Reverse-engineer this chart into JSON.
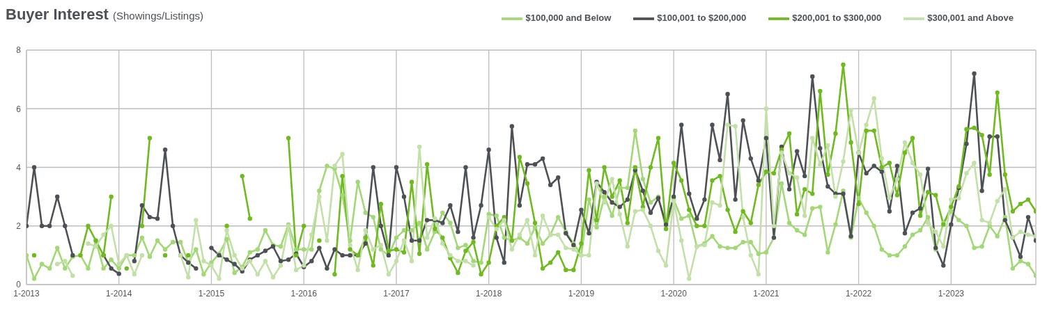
{
  "chart_data": {
    "type": "line",
    "title": "Buyer Interest",
    "subtitle": "(Showings/Listings)",
    "x": [
      "2013-01",
      "2013-02",
      "2013-03",
      "2013-04",
      "2013-05",
      "2013-06",
      "2013-07",
      "2013-08",
      "2013-09",
      "2013-10",
      "2013-11",
      "2013-12",
      "2014-01",
      "2014-02",
      "2014-03",
      "2014-04",
      "2014-05",
      "2014-06",
      "2014-07",
      "2014-08",
      "2014-09",
      "2014-10",
      "2014-11",
      "2014-12",
      "2015-01",
      "2015-02",
      "2015-03",
      "2015-04",
      "2015-05",
      "2015-06",
      "2015-07",
      "2015-08",
      "2015-09",
      "2015-10",
      "2015-11",
      "2015-12",
      "2016-01",
      "2016-02",
      "2016-03",
      "2016-04",
      "2016-05",
      "2016-06",
      "2016-07",
      "2016-08",
      "2016-09",
      "2016-10",
      "2016-11",
      "2016-12",
      "2017-01",
      "2017-02",
      "2017-03",
      "2017-04",
      "2017-05",
      "2017-06",
      "2017-07",
      "2017-08",
      "2017-09",
      "2017-10",
      "2017-11",
      "2017-12",
      "2018-01",
      "2018-02",
      "2018-03",
      "2018-04",
      "2018-05",
      "2018-06",
      "2018-07",
      "2018-08",
      "2018-09",
      "2018-10",
      "2018-11",
      "2018-12",
      "2019-01",
      "2019-02",
      "2019-03",
      "2019-04",
      "2019-05",
      "2019-06",
      "2019-07",
      "2019-08",
      "2019-09",
      "2019-10",
      "2019-11",
      "2019-12",
      "2020-01",
      "2020-02",
      "2020-03",
      "2020-04",
      "2020-05",
      "2020-06",
      "2020-07",
      "2020-08",
      "2020-09",
      "2020-10",
      "2020-11",
      "2020-12",
      "2021-01",
      "2021-02",
      "2021-03",
      "2021-04",
      "2021-05",
      "2021-06",
      "2021-07",
      "2021-08",
      "2021-09",
      "2021-10",
      "2021-11",
      "2021-12",
      "2022-01",
      "2022-02",
      "2022-03",
      "2022-04",
      "2022-05",
      "2022-06",
      "2022-07",
      "2022-08",
      "2022-09",
      "2022-10",
      "2022-11",
      "2022-12",
      "2023-01",
      "2023-02",
      "2023-03",
      "2023-04",
      "2023-05",
      "2023-06",
      "2023-07",
      "2023-08",
      "2023-09",
      "2023-10",
      "2023-11",
      "2023-12"
    ],
    "series": [
      {
        "name": "$100,000 and Below",
        "color": "#a3d877",
        "values": [
          1.0,
          0.2,
          0.7,
          0.55,
          1.25,
          0.55,
          0.95,
          1.0,
          0.55,
          1.5,
          0.55,
          0.85,
          0.55,
          1.0,
          1.0,
          1.6,
          0.95,
          1.5,
          1.2,
          1.45,
          1.45,
          0.75,
          1.2,
          0.35,
          0.75,
          1.05,
          1.55,
          0.4,
          0.6,
          1.1,
          1.2,
          1.85,
          1.35,
          1.3,
          2.05,
          1.2,
          1.2,
          1.2,
          3.2,
          4.05,
          3.95,
          3.05,
          1.5,
          3.5,
          2.45,
          2.3,
          1.2,
          1.0,
          1.6,
          1.85,
          1.85,
          2.1,
          1.2,
          1.8,
          2.45,
          2.1,
          1.25,
          1.35,
          0.8,
          0.75,
          2.4,
          2.35,
          1.6,
          1.5,
          1.6,
          1.4,
          1.95,
          1.4,
          1.7,
          2.3,
          1.8,
          1.4,
          1.0,
          2.9,
          1.95,
          3.0,
          2.35,
          3.3,
          3.3,
          5.25,
          3.6,
          2.8,
          3.0,
          1.9,
          2.9,
          2.25,
          2.35,
          1.3,
          1.4,
          1.65,
          1.3,
          1.25,
          1.25,
          1.45,
          1.45,
          1.05,
          1.1,
          1.6,
          3.45,
          2.1,
          1.85,
          1.7,
          2.6,
          2.65,
          1.1,
          2.05,
          3.2,
          1.6,
          2.95,
          2.45,
          2.0,
          1.2,
          1.0,
          1.0,
          1.3,
          1.7,
          1.85,
          2.3,
          1.2,
          2.1,
          2.5,
          2.2,
          2.0,
          1.25,
          1.3,
          2.0,
          1.65,
          2.3,
          0.55,
          0.8,
          0.7,
          0.3
        ]
      },
      {
        "name": "$100,001 to $200,000",
        "color": "#4d5155",
        "values": [
          2.0,
          4.0,
          2.0,
          2.0,
          3.0,
          2.0,
          1.0,
          null,
          null,
          null,
          1.0,
          0.55,
          0.37,
          null,
          0.8,
          2.7,
          2.3,
          2.25,
          4.6,
          2.0,
          1.0,
          0.75,
          0.55,
          null,
          1.25,
          1.0,
          0.85,
          0.7,
          0.45,
          0.85,
          1.0,
          1.15,
          1.3,
          0.8,
          0.85,
          1.05,
          0.6,
          0.8,
          1.25,
          0.55,
          1.2,
          1.0,
          1.0,
          1.0,
          1.4,
          4.0,
          2.0,
          1.0,
          4.0,
          3.0,
          1.5,
          1.5,
          2.2,
          2.2,
          2.1,
          2.7,
          1.8,
          4.0,
          1.6,
          2.7,
          4.6,
          1.6,
          0.75,
          5.4,
          2.7,
          4.1,
          4.1,
          4.3,
          3.4,
          3.65,
          1.75,
          1.35,
          2.55,
          1.75,
          3.5,
          3.15,
          2.8,
          2.65,
          2.9,
          3.9,
          3.2,
          2.45,
          2.95,
          2.05,
          3.0,
          5.45,
          3.1,
          2.25,
          2.9,
          5.45,
          4.25,
          6.5,
          2.9,
          5.6,
          4.3,
          3.55,
          5.0,
          1.6,
          4.7,
          3.25,
          4.55,
          3.7,
          7.1,
          4.65,
          3.35,
          3.1,
          3.1,
          1.65,
          4.5,
          3.8,
          4.05,
          3.85,
          2.5,
          4.05,
          1.75,
          2.45,
          2.6,
          3.95,
          1.25,
          0.65,
          2.05,
          3.3,
          4.8,
          7.2,
          3.2,
          5.05,
          5.05,
          2.2,
          1.6,
          0.95,
          2.3,
          1.5
        ]
      },
      {
        "name": "$200,001 to $300,000",
        "color": "#6fbb1f",
        "values": [
          null,
          1.0,
          null,
          null,
          null,
          null,
          null,
          1.0,
          2.0,
          1.5,
          1.0,
          3.0,
          null,
          0.55,
          null,
          2.0,
          5.0,
          null,
          1.0,
          null,
          null,
          1.0,
          null,
          null,
          null,
          null,
          2.0,
          null,
          3.7,
          2.25,
          null,
          null,
          null,
          null,
          5.0,
          1.0,
          2.0,
          null,
          1.5,
          null,
          0.35,
          3.7,
          1.2,
          1.0,
          1.6,
          0.65,
          2.75,
          1.15,
          1.2,
          1.1,
          3.5,
          1.05,
          4.1,
          1.9,
          1.6,
          0.9,
          0.4,
          1.15,
          1.45,
          0.35,
          0.75,
          2.0,
          2.3,
          1.5,
          4.35,
          3.45,
          2.1,
          0.55,
          0.75,
          1.1,
          0.5,
          0.5,
          1.4,
          3.9,
          2.2,
          4.0,
          3.0,
          3.55,
          2.1,
          4.0,
          2.65,
          4.0,
          5.0,
          1.9,
          4.15,
          3.55,
          2.55,
          2.0,
          2.0,
          3.55,
          3.7,
          2.55,
          1.8,
          2.5,
          2.1,
          3.4,
          3.85,
          3.8,
          4.6,
          5.15,
          2.4,
          3.25,
          3.1,
          6.6,
          3.75,
          5.15,
          7.5,
          4.85,
          2.75,
          5.25,
          5.25,
          4.0,
          4.15,
          3.05,
          4.5,
          5.0,
          2.35,
          3.15,
          3.05,
          2.05,
          2.65,
          3.35,
          5.3,
          5.35,
          5.1,
          3.75,
          6.55,
          3.75,
          2.5,
          2.75,
          2.9,
          2.5
        ]
      },
      {
        "name": "$300,001 and Above",
        "color": "#c3e0a8",
        "values": [
          null,
          null,
          null,
          null,
          0.7,
          0.8,
          0.3,
          null,
          1.4,
          1.3,
          1.7,
          2.0,
          0.7,
          1.0,
          0.35,
          1.0,
          null,
          null,
          null,
          null,
          1.0,
          0.25,
          2.2,
          0.8,
          0.65,
          0.2,
          1.85,
          1.0,
          0.55,
          0.8,
          0.35,
          0.8,
          0.25,
          0.65,
          2.0,
          0.5,
          0.65,
          1.7,
          3.0,
          1.5,
          4.05,
          4.45,
          1.35,
          0.5,
          1.85,
          1.2,
          1.35,
          0.35,
          0.8,
          1.5,
          0.8,
          4.7,
          1.6,
          2.25,
          1.4,
          1.0,
          0.8,
          0.8,
          0.65,
          null,
          2.3,
          1.9,
          2.2,
          1.2,
          1.7,
          2.2,
          1.0,
          2.35,
          1.7,
          1.7,
          1.25,
          1.2,
          1.0,
          1.0,
          3.45,
          2.8,
          3.6,
          2.4,
          1.3,
          2.5,
          2.55,
          2.0,
          1.15,
          0.65,
          2.85,
          1.5,
          0.2,
          1.3,
          1.35,
          2.8,
          2.7,
          5.45,
          5.4,
          2.3,
          1.0,
          0.35,
          6.0,
          2.0,
          4.5,
          3.8,
          3.65,
          2.35,
          5.0,
          4.1,
          4.75,
          3.0,
          4.2,
          5.95,
          4.5,
          5.45,
          6.35,
          4.3,
          2.95,
          3.6,
          4.85,
          4.15,
          3.75,
          2.1,
          1.8,
          1.3,
          2.9,
          2.95,
          3.8,
          4.15,
          2.2,
          2.1,
          2.85,
          3.25,
          1.6,
          1.8,
          1.7,
          1.65
        ]
      }
    ],
    "xlim": [
      "2013-01",
      "2023-12"
    ],
    "xticks": [
      {
        "value": "2013-01",
        "label": "1-2013"
      },
      {
        "value": "2014-01",
        "label": "1-2014"
      },
      {
        "value": "2015-01",
        "label": "1-2015"
      },
      {
        "value": "2016-01",
        "label": "1-2016"
      },
      {
        "value": "2017-01",
        "label": "1-2017"
      },
      {
        "value": "2018-01",
        "label": "1-2018"
      },
      {
        "value": "2019-01",
        "label": "1-2019"
      },
      {
        "value": "2020-01",
        "label": "1-2020"
      },
      {
        "value": "2021-01",
        "label": "1-2021"
      },
      {
        "value": "2022-01",
        "label": "1-2022"
      },
      {
        "value": "2023-01",
        "label": "1-2023"
      }
    ],
    "ylim": [
      0,
      8
    ],
    "yticks": [
      0,
      2,
      4,
      6,
      8
    ],
    "grid": true,
    "legend": "top right",
    "marker": "circle",
    "line_style": "solid"
  }
}
